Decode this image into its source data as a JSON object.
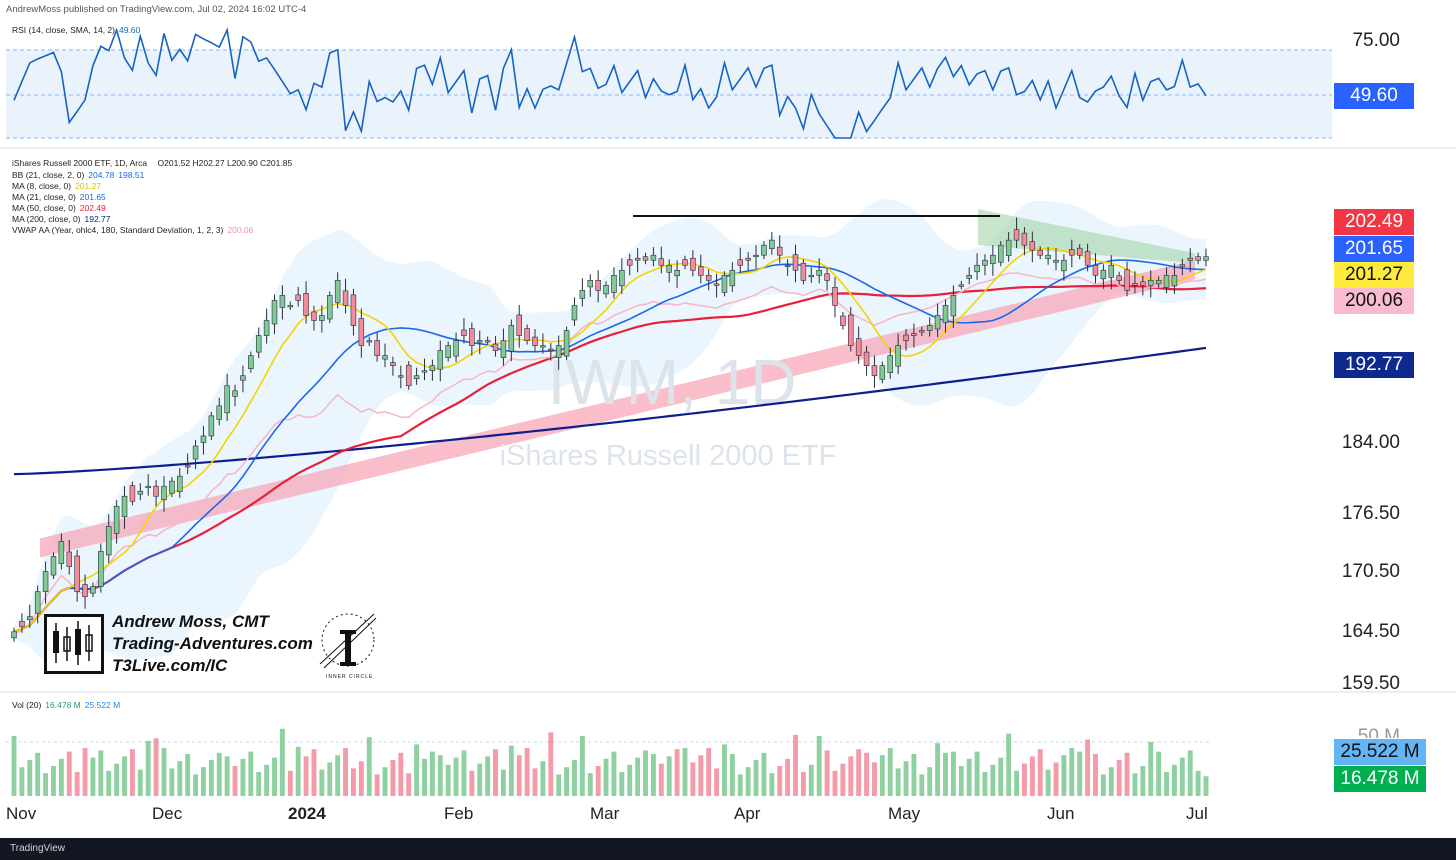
{
  "publisher": "AndrewMoss published on TradingView.com, Jul 02, 2024 16:02 UTC-4",
  "footer": {
    "logo_text": "TradingView"
  },
  "rsi_panel": {
    "label": "RSI (14, close, SMA, 14, 2)",
    "value": "49.60",
    "axis_levels": [
      "75.00"
    ],
    "badge": "49.60"
  },
  "legend": {
    "main": "iShares Russell 2000 ETF, 1D, Arca",
    "ohlc": "O201.52  H202.27  L200.90  C201.85",
    "bb": {
      "label": "BB (21, close, 2, 0)",
      "v1": "204.78",
      "v2": "198.51"
    },
    "ma8": {
      "label": "MA (8, close, 0)",
      "v": "201.27"
    },
    "ma21": {
      "label": "MA (21, close, 0)",
      "v": "201.65"
    },
    "ma50": {
      "label": "MA (50, close, 0)",
      "v": "202.49"
    },
    "ma200": {
      "label": "MA (200, close, 0)",
      "v": "192.77"
    },
    "vwap": {
      "label": "VWAP AA (Year, ohlc4, 180, Standard Deviation, 1, 2, 3)",
      "v": "200.06"
    }
  },
  "price_axis": [
    "184.00",
    "176.50",
    "170.50",
    "164.50",
    "159.50"
  ],
  "price_badges": [
    {
      "text": "202.49",
      "color": "#f23645",
      "fg": "#ffffff"
    },
    {
      "text": "201.65",
      "color": "#2962ff",
      "fg": "#ffffff"
    },
    {
      "text": "201.27",
      "color": "#ffeb3b",
      "fg": "#111111"
    },
    {
      "text": "200.06",
      "color": "#f8bbd0",
      "fg": "#111111"
    },
    {
      "text": "192.77",
      "color": "#0d2a8c",
      "fg": "#ffffff"
    }
  ],
  "watermark": {
    "symbol": "IWM, 1D",
    "name": "iShares Russell 2000 ETF"
  },
  "branding": {
    "line1": "Andrew Moss, CMT",
    "line2": "Trading-Adventures.com",
    "line3": "T3Live.com/IC",
    "seal": "INNER CIRCLE"
  },
  "volume_panel": {
    "label": "Vol (20)",
    "v1": "16.478 M",
    "v2": "25.522 M",
    "axis_label": "50 M",
    "badge1": "25.522 M",
    "badge2": "16.478 M"
  },
  "x_axis": [
    "Nov",
    "Dec",
    "2024",
    "Feb",
    "Mar",
    "Apr",
    "May",
    "Jun",
    "Jul"
  ],
  "colors": {
    "up": "#81c995",
    "down": "#f28b9a",
    "ma8": "#f5d400",
    "ma21": "#1e66e8",
    "ma50": "#e8203a",
    "ma200": "#0d1f8c",
    "vwap": "#f7b6c6",
    "bb_fill": "#e3f2fd",
    "rsi_line": "#1565c0"
  },
  "chart_data": {
    "type": "candlestick",
    "symbol": "IWM",
    "timeframe": "1D",
    "ylim": [
      159.5,
      207
    ],
    "close_series": [
      164.5,
      165,
      166,
      168.5,
      170.5,
      172,
      173.5,
      171,
      168.5,
      168,
      169,
      172.5,
      175,
      177,
      178,
      177.5,
      178.5,
      179,
      178,
      179,
      179.5,
      180,
      181,
      183,
      184,
      186,
      187,
      189,
      188.5,
      190,
      192,
      194,
      195.5,
      197.5,
      198,
      197,
      197.5,
      196,
      195.5,
      196,
      198,
      199.5,
      197,
      195,
      193,
      193.5,
      192,
      192,
      191,
      190,
      189,
      190,
      190.5,
      191,
      192.5,
      193,
      193.5,
      194,
      193,
      193.5,
      193.5,
      192.5,
      193.5,
      195,
      194,
      193.5,
      193,
      193,
      192.5,
      193,
      194.5,
      197,
      198.5,
      199.5,
      198.5,
      199,
      200,
      200.5,
      201,
      201.5,
      201.5,
      202,
      201,
      201,
      200.5,
      201,
      200.5,
      200,
      199.5,
      199,
      200,
      200.5,
      201,
      201.5,
      202,
      203,
      203.5,
      202,
      201,
      200.5,
      199.5,
      200,
      200.5,
      199.5,
      197,
      195,
      193,
      192,
      191,
      190,
      191,
      192,
      193,
      193.5,
      194,
      194.5,
      195,
      196,
      197,
      198,
      199,
      200,
      201,
      201.5,
      202,
      203,
      203.5,
      203.5,
      203,
      202.5,
      202,
      202,
      201.5,
      201.5,
      202,
      202,
      201,
      200,
      200.5,
      201,
      199.5,
      198.5,
      199,
      199,
      199.5,
      199.5,
      200,
      200,
      201,
      201.5,
      201.5,
      201.85
    ],
    "ma200_start": 180.2,
    "ma200_end": 192.77,
    "resistance_line": 205.9,
    "last": {
      "open": 201.52,
      "high": 202.27,
      "low": 200.9,
      "close": 201.85
    },
    "rsi_last": 49.6,
    "volume_last_m": 16.478,
    "volume_avg_m": 25.522
  }
}
